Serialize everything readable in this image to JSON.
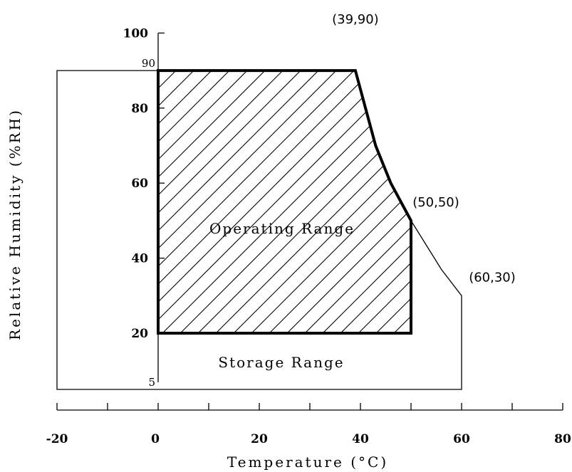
{
  "chart_data": {
    "type": "area",
    "xlabel": "Temperature (°C)",
    "ylabel": "Relative Humidity (%RH)",
    "xlim": [
      -20,
      80
    ],
    "ylim": [
      5,
      100
    ],
    "x_ticks": [
      -20,
      0,
      20,
      40,
      60,
      80
    ],
    "y_ticks": [
      20,
      40,
      60,
      80,
      100
    ],
    "y_extra_labels": [
      90,
      5
    ],
    "grid": false,
    "regions": [
      {
        "name": "Operating Range",
        "style": "hatched",
        "points": [
          [
            0,
            20
          ],
          [
            0,
            90
          ],
          [
            39,
            90
          ],
          [
            41,
            80
          ],
          [
            43,
            70
          ],
          [
            46,
            60
          ],
          [
            50,
            50
          ],
          [
            50,
            20
          ]
        ]
      },
      {
        "name": "Storage Range",
        "style": "outline",
        "points": [
          [
            -20,
            5
          ],
          [
            -20,
            90
          ],
          [
            39,
            90
          ],
          [
            41,
            80
          ],
          [
            43,
            70
          ],
          [
            46,
            60
          ],
          [
            50,
            50
          ],
          [
            56,
            37
          ],
          [
            60,
            30
          ],
          [
            60,
            5
          ]
        ]
      }
    ],
    "annotations": [
      {
        "text": "(39,90)",
        "x": 39,
        "y": 90
      },
      {
        "text": "(50,50)",
        "x": 50,
        "y": 50
      },
      {
        "text": "(60,30)",
        "x": 60,
        "y": 30
      }
    ]
  }
}
